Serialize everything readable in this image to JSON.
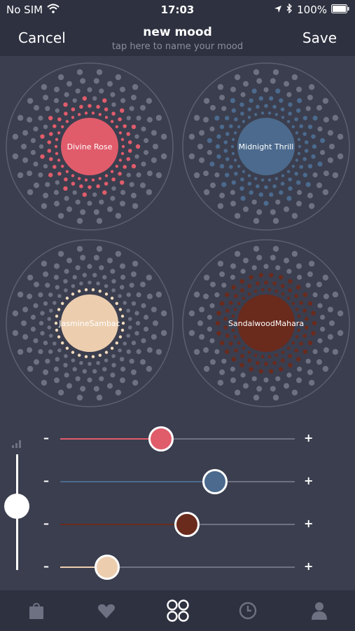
{
  "status": {
    "carrier": "No SIM",
    "time": "17:03",
    "battery": "100%"
  },
  "nav": {
    "cancel_label": "Cancel",
    "save_label": "Save",
    "title": "new mood",
    "subtitle": "tap here to name your mood"
  },
  "wheels": [
    {
      "name": "Divine Rose",
      "lines": [
        "Divine Rose"
      ],
      "color": "#e05c6b",
      "dots": "#e05c6b"
    },
    {
      "name": "Midnight Thrill",
      "lines": [
        "Midnight Thrill"
      ],
      "color": "#4b6a8d",
      "dots": "#4b6a8d"
    },
    {
      "name": "Jasmine Sambac",
      "lines": [
        "Jasmine",
        "Sambac"
      ],
      "color": "#ecceaf",
      "dots": "#f0dbbd"
    },
    {
      "name": "Sandalwood Mahara",
      "lines": [
        "Sandalwood",
        "Mahara"
      ],
      "color": "#6a2a1c",
      "dots": "#6a2a1c"
    }
  ],
  "sliders": {
    "minus_label": "–",
    "plus_label": "+",
    "items": [
      {
        "name": "Divine Rose",
        "color": "#e05c6b",
        "level": 0.43
      },
      {
        "name": "Midnight Thrill",
        "color": "#4b6a8d",
        "level": 0.66
      },
      {
        "name": "Sandalwood Mahara",
        "color": "#6a2a1c",
        "level": 0.54
      },
      {
        "name": "Jasmine Sambac",
        "color": "#ecceaf",
        "level": 0.2
      }
    ]
  },
  "intensity": {
    "level": 0.55
  },
  "tabs": [
    "bag-icon",
    "heart-icon",
    "moods-icon",
    "clock-icon",
    "profile-icon"
  ]
}
